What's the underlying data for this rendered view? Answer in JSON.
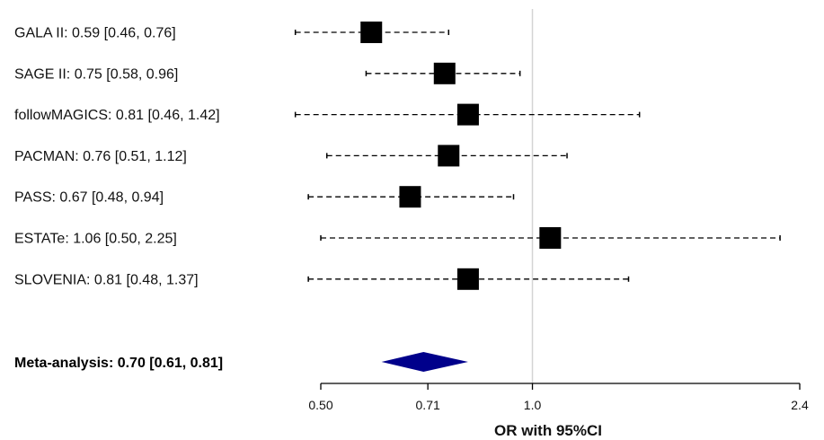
{
  "chart_data": {
    "type": "forest",
    "xlabel": "OR with 95%CI",
    "x_scale": "log",
    "xlim": [
      0.5,
      2.4
    ],
    "x_ticks": [
      {
        "value": 0.5,
        "label": "0.50"
      },
      {
        "value": 0.71,
        "label": "0.71"
      },
      {
        "value": 1.0,
        "label": "1.0"
      },
      {
        "value": 2.4,
        "label": "2.4"
      }
    ],
    "reference_line": 1.0,
    "studies": [
      {
        "label": "GALA II: 0.59 [0.46, 0.76]",
        "or": 0.59,
        "lower": 0.46,
        "upper": 0.76
      },
      {
        "label": "SAGE II: 0.75 [0.58, 0.96]",
        "or": 0.75,
        "lower": 0.58,
        "upper": 0.96
      },
      {
        "label": "followMAGICS: 0.81 [0.46, 1.42]",
        "or": 0.81,
        "lower": 0.46,
        "upper": 1.42
      },
      {
        "label": "PACMAN: 0.76 [0.51, 1.12]",
        "or": 0.76,
        "lower": 0.51,
        "upper": 1.12
      },
      {
        "label": "PASS: 0.67 [0.48, 0.94]",
        "or": 0.67,
        "lower": 0.48,
        "upper": 0.94
      },
      {
        "label": "ESTATe: 1.06 [0.50, 2.25]",
        "or": 1.06,
        "lower": 0.5,
        "upper": 2.25
      },
      {
        "label": "SLOVENIA: 0.81 [0.48, 1.37]",
        "or": 0.81,
        "lower": 0.48,
        "upper": 1.37
      }
    ],
    "meta": {
      "label": "Meta-analysis: 0.70 [0.61, 0.81]",
      "or": 0.7,
      "lower": 0.61,
      "upper": 0.81
    },
    "colors": {
      "point": "#000000",
      "whisker": "#000000",
      "reference_line": "#d4d4d4",
      "meta_diamond": "#00008b"
    },
    "grid": false
  }
}
